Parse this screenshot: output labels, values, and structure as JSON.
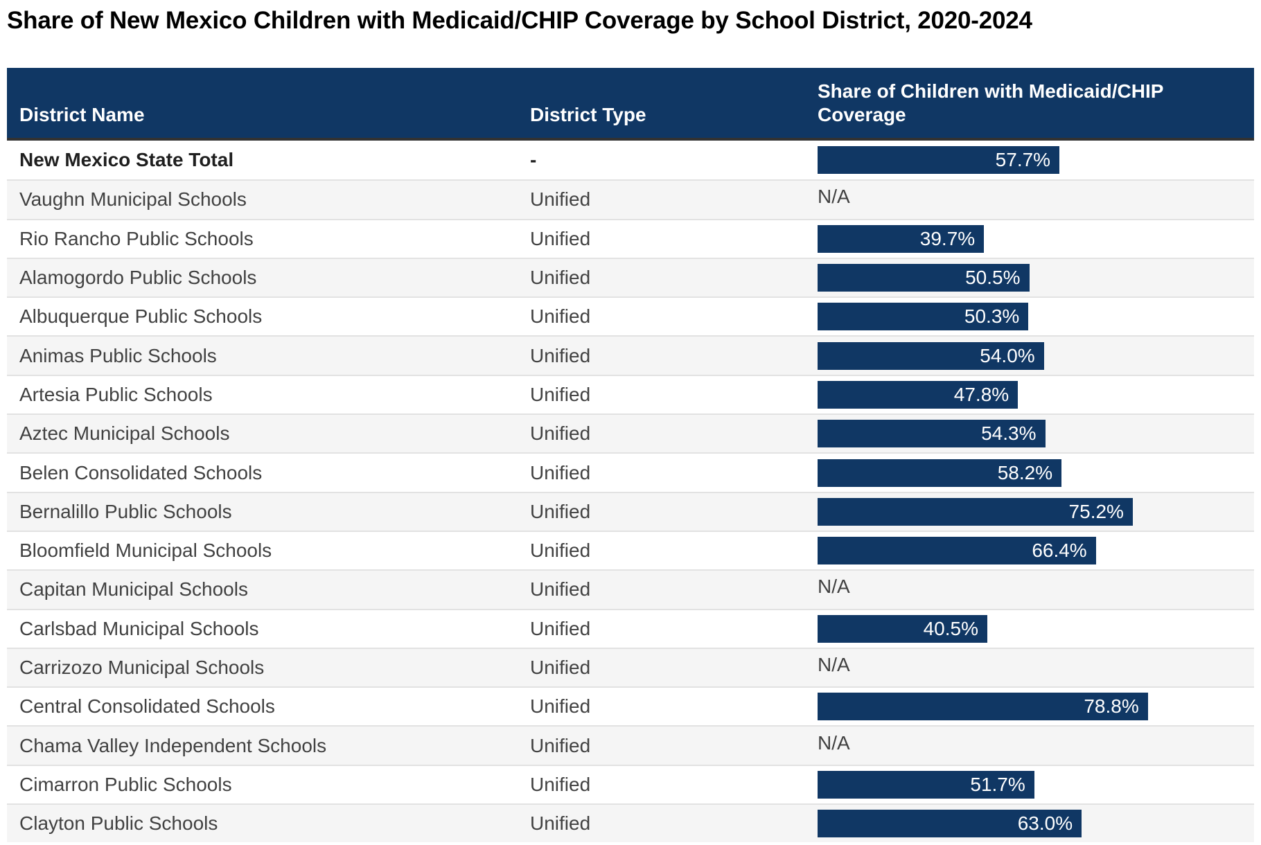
{
  "title": "Share of New Mexico Children with Medicaid/CHIP Coverage by School District, 2020-2024",
  "colors": {
    "navy": "#103764",
    "stripe": "#f5f5f5",
    "divider": "#e2e2e2",
    "header_border": "#323232",
    "body_text": "#414141"
  },
  "table": {
    "columns": {
      "district_name": "District Name",
      "district_type": "District Type",
      "share": "Share of Children with Medicaid/CHIP Coverage"
    },
    "rows": [
      {
        "district": "New Mexico State Total",
        "type": "-",
        "value_pct": 57.7,
        "display": "57.7%",
        "bold": true
      },
      {
        "district": "Vaughn Municipal Schools",
        "type": "Unified",
        "value_pct": null,
        "display": "N/A",
        "bold": false
      },
      {
        "district": "Rio Rancho Public Schools",
        "type": "Unified",
        "value_pct": 39.7,
        "display": "39.7%",
        "bold": false
      },
      {
        "district": "Alamogordo Public Schools",
        "type": "Unified",
        "value_pct": 50.5,
        "display": "50.5%",
        "bold": false
      },
      {
        "district": "Albuquerque Public Schools",
        "type": "Unified",
        "value_pct": 50.3,
        "display": "50.3%",
        "bold": false
      },
      {
        "district": "Animas Public Schools",
        "type": "Unified",
        "value_pct": 54.0,
        "display": "54.0%",
        "bold": false
      },
      {
        "district": "Artesia Public Schools",
        "type": "Unified",
        "value_pct": 47.8,
        "display": "47.8%",
        "bold": false
      },
      {
        "district": "Aztec Municipal Schools",
        "type": "Unified",
        "value_pct": 54.3,
        "display": "54.3%",
        "bold": false
      },
      {
        "district": "Belen Consolidated Schools",
        "type": "Unified",
        "value_pct": 58.2,
        "display": "58.2%",
        "bold": false
      },
      {
        "district": "Bernalillo Public Schools",
        "type": "Unified",
        "value_pct": 75.2,
        "display": "75.2%",
        "bold": false
      },
      {
        "district": "Bloomfield Municipal Schools",
        "type": "Unified",
        "value_pct": 66.4,
        "display": "66.4%",
        "bold": false
      },
      {
        "district": "Capitan Municipal Schools",
        "type": "Unified",
        "value_pct": null,
        "display": "N/A",
        "bold": false
      },
      {
        "district": "Carlsbad Municipal Schools",
        "type": "Unified",
        "value_pct": 40.5,
        "display": "40.5%",
        "bold": false
      },
      {
        "district": "Carrizozo Municipal Schools",
        "type": "Unified",
        "value_pct": null,
        "display": "N/A",
        "bold": false
      },
      {
        "district": "Central Consolidated Schools",
        "type": "Unified",
        "value_pct": 78.8,
        "display": "78.8%",
        "bold": false
      },
      {
        "district": "Chama Valley Independent Schools",
        "type": "Unified",
        "value_pct": null,
        "display": "N/A",
        "bold": false
      },
      {
        "district": "Cimarron Public Schools",
        "type": "Unified",
        "value_pct": 51.7,
        "display": "51.7%",
        "bold": false
      },
      {
        "district": "Clayton Public Schools",
        "type": "Unified",
        "value_pct": 63.0,
        "display": "63.0%",
        "bold": false
      }
    ]
  },
  "chart_data": {
    "type": "bar",
    "orientation": "horizontal",
    "title": "Share of New Mexico Children with Medicaid/CHIP Coverage by School District, 2020-2024",
    "xlabel": "Share of Children with Medicaid/CHIP Coverage",
    "ylabel": "District Name",
    "xlim": [
      0,
      100
    ],
    "grid": false,
    "legend": "none",
    "bar_color": "#103764",
    "categories": [
      "New Mexico State Total",
      "Vaughn Municipal Schools",
      "Rio Rancho Public Schools",
      "Alamogordo Public Schools",
      "Albuquerque Public Schools",
      "Animas Public Schools",
      "Artesia Public Schools",
      "Aztec Municipal Schools",
      "Belen Consolidated Schools",
      "Bernalillo Public Schools",
      "Bloomfield Municipal Schools",
      "Capitan Municipal Schools",
      "Carlsbad Municipal Schools",
      "Carrizozo Municipal Schools",
      "Central Consolidated Schools",
      "Chama Valley Independent Schools",
      "Cimarron Public Schools",
      "Clayton Public Schools"
    ],
    "values": [
      57.7,
      null,
      39.7,
      50.5,
      50.3,
      54.0,
      47.8,
      54.3,
      58.2,
      75.2,
      66.4,
      null,
      40.5,
      null,
      78.8,
      null,
      51.7,
      63.0
    ]
  }
}
